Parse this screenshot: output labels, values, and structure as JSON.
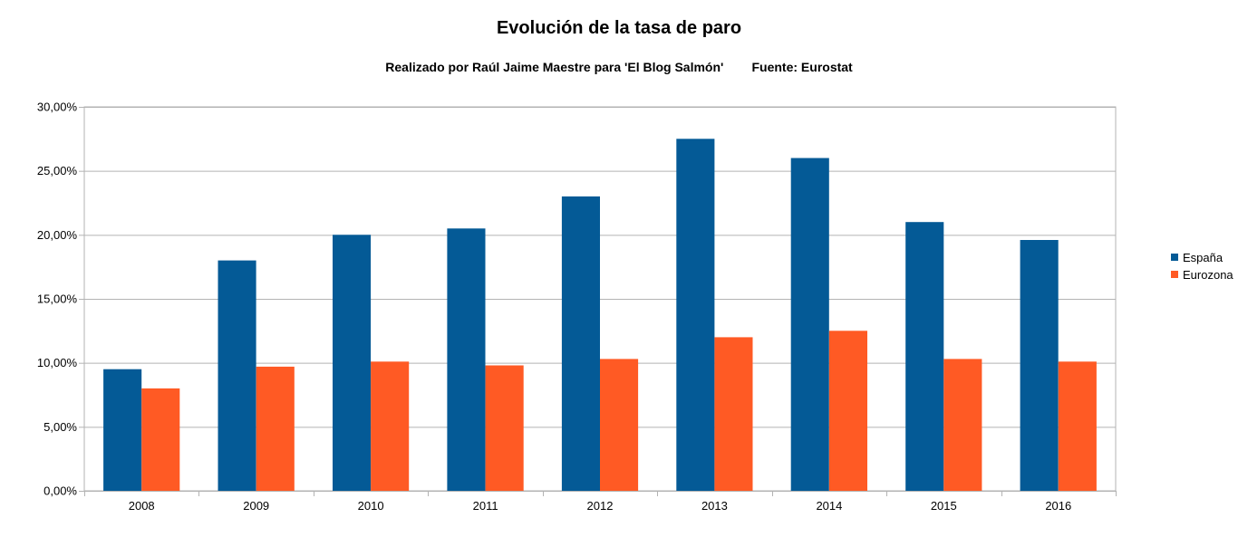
{
  "chart_data": {
    "type": "bar",
    "title": "Evolución de la tasa de paro",
    "subtitle": "Realizado por Raúl Jaime Maestre para 'El Blog Salmón'        Fuente: Eurostat",
    "xlabel": "",
    "ylabel": "",
    "categories": [
      "2008",
      "2009",
      "2010",
      "2011",
      "2012",
      "2013",
      "2014",
      "2015",
      "2016"
    ],
    "series": [
      {
        "name": "España",
        "color": "#045a96",
        "values": [
          9.5,
          18.0,
          20.0,
          20.5,
          23.0,
          27.5,
          26.0,
          21.0,
          19.6
        ]
      },
      {
        "name": "Eurozona",
        "color": "#ff5a24",
        "values": [
          8.0,
          9.7,
          10.1,
          9.8,
          10.3,
          12.0,
          12.5,
          10.3,
          10.1
        ]
      }
    ],
    "ylim": [
      0,
      30
    ],
    "yticks": [
      0,
      5,
      10,
      15,
      20,
      25,
      30
    ],
    "ytick_labels": [
      "0,00%",
      "5,00%",
      "10,00%",
      "15,00%",
      "20,00%",
      "25,00%",
      "30,00%"
    ],
    "grid": true,
    "legend_position": "right"
  }
}
